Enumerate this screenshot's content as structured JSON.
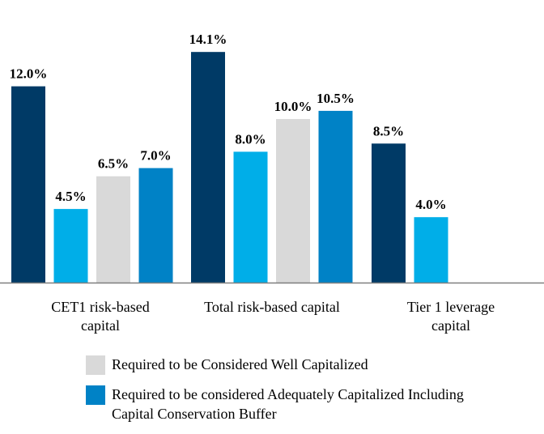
{
  "chart_data": {
    "type": "bar",
    "categories": [
      [
        "CET1 risk-based",
        "capital"
      ],
      [
        "Total risk-based capital"
      ],
      [
        "Tier 1 leverage",
        "capital"
      ]
    ],
    "series": [
      {
        "values": [
          12.0,
          14.1,
          8.5
        ],
        "labels": [
          "12.0%",
          "14.1%",
          "8.5%"
        ],
        "color": "#003a66"
      },
      {
        "values": [
          4.5,
          8.0,
          4.0
        ],
        "labels": [
          "4.5%",
          "8.0%",
          "4.0%"
        ],
        "color": "#00aee8"
      },
      {
        "name": "Required to be Considered Well Capitalized",
        "values": [
          6.5,
          10.0,
          null
        ],
        "labels": [
          "6.5%",
          "10.0%",
          ""
        ],
        "color": "#d9d9d9"
      },
      {
        "name": "Required to be considered Adequately Capitalized Including Capital Conservation Buffer",
        "values": [
          7.0,
          10.5,
          null
        ],
        "labels": [
          "7.0%",
          "10.5%",
          ""
        ],
        "color": "#0082c6"
      }
    ],
    "ylim": [
      0,
      16
    ],
    "grid": false,
    "legend_position": "bottom"
  },
  "legend": {
    "items": [
      {
        "label": "Required to be Considered Well Capitalized",
        "color": "#d9d9d9"
      },
      {
        "label": "Required to be considered Adequately Capitalized Including Capital Conservation Buffer",
        "color": "#0082c6"
      }
    ]
  }
}
